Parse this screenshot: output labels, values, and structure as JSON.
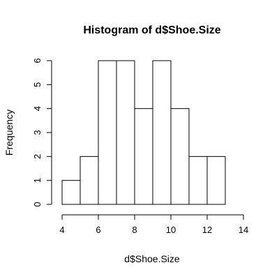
{
  "chart_data": {
    "type": "bar",
    "title": "Histogram of d$Shoe.Size",
    "xlabel": "d$Shoe.Size",
    "ylabel": "Frequency",
    "bins": [
      {
        "start": 4,
        "end": 5,
        "count": 1
      },
      {
        "start": 5,
        "end": 6,
        "count": 2
      },
      {
        "start": 6,
        "end": 7,
        "count": 6
      },
      {
        "start": 7,
        "end": 8,
        "count": 6
      },
      {
        "start": 8,
        "end": 9,
        "count": 4
      },
      {
        "start": 9,
        "end": 10,
        "count": 6
      },
      {
        "start": 10,
        "end": 11,
        "count": 4
      },
      {
        "start": 11,
        "end": 12,
        "count": 2
      },
      {
        "start": 12,
        "end": 13,
        "count": 2
      }
    ],
    "x_ticks": [
      "4",
      "6",
      "8",
      "10",
      "12",
      "14"
    ],
    "y_ticks": [
      "0",
      "1",
      "2",
      "3",
      "4",
      "5",
      "6"
    ],
    "xlim": [
      4,
      14
    ],
    "ylim": [
      0,
      6
    ],
    "grid": false,
    "colors": {
      "bar_fill": "#ffffff",
      "bar_stroke": "#000000"
    }
  }
}
